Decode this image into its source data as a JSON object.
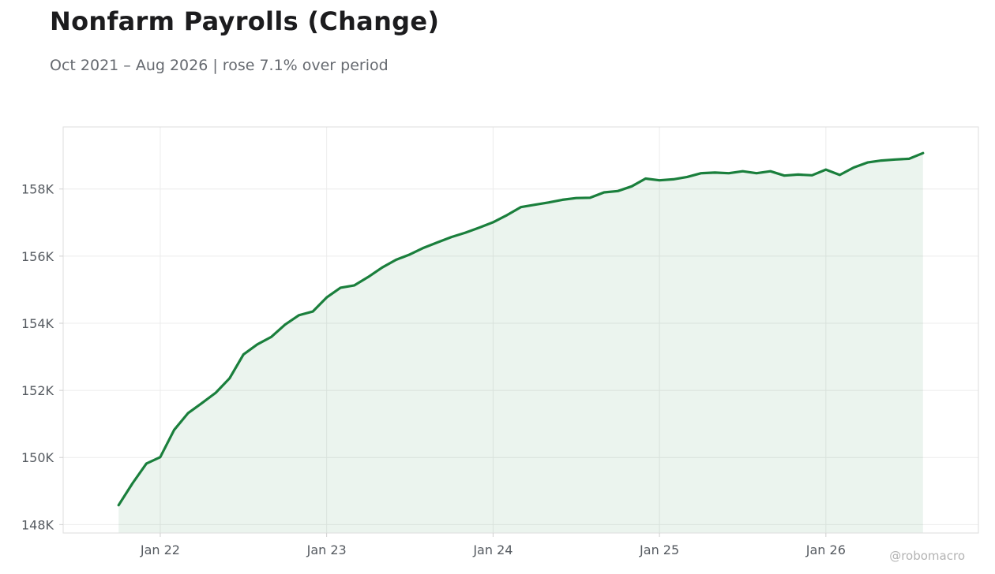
{
  "title": "Nonfarm Payrolls (Change)",
  "subtitle": "Oct 2021 – Aug 2026 | rose 7.1% over period",
  "watermark": "@robomacro",
  "colors": {
    "line": "#1a7f3c",
    "fill": "#1a7f3c",
    "grid": "#ececec",
    "frame": "#dddddd"
  },
  "chart_data": {
    "type": "area",
    "title": "Nonfarm Payrolls (Change)",
    "xlabel": "",
    "ylabel": "",
    "grid": true,
    "ylim": [
      147750,
      159850
    ],
    "x_range": [
      "2021-06",
      "2026-12"
    ],
    "x_ticks": [
      {
        "date": "2022-01",
        "label": "Jan 22"
      },
      {
        "date": "2023-01",
        "label": "Jan 23"
      },
      {
        "date": "2024-01",
        "label": "Jan 24"
      },
      {
        "date": "2025-01",
        "label": "Jan 25"
      },
      {
        "date": "2026-01",
        "label": "Jan 26"
      }
    ],
    "y_ticks": [
      {
        "value": 148000,
        "label": "148K"
      },
      {
        "value": 150000,
        "label": "150K"
      },
      {
        "value": 152000,
        "label": "152K"
      },
      {
        "value": 154000,
        "label": "154K"
      },
      {
        "value": 156000,
        "label": "156K"
      },
      {
        "value": 158000,
        "label": "158K"
      }
    ],
    "series": [
      {
        "x": [
          "2021-10",
          "2021-11",
          "2021-12",
          "2022-01",
          "2022-02",
          "2022-03",
          "2022-04",
          "2022-05",
          "2022-06",
          "2022-07",
          "2022-08",
          "2022-09",
          "2022-10",
          "2022-11",
          "2022-12",
          "2023-01",
          "2023-02",
          "2023-03",
          "2023-04",
          "2023-05",
          "2023-06",
          "2023-07",
          "2023-08",
          "2023-09",
          "2023-10",
          "2023-11",
          "2023-12",
          "2024-01",
          "2024-02",
          "2024-03",
          "2024-04",
          "2024-05",
          "2024-06",
          "2024-07",
          "2024-08",
          "2024-09",
          "2024-10",
          "2024-11",
          "2024-12",
          "2025-01",
          "2025-02",
          "2025-03",
          "2025-04",
          "2025-05",
          "2025-06",
          "2025-07",
          "2025-08",
          "2025-09",
          "2025-10",
          "2025-11",
          "2025-12",
          "2026-01",
          "2026-02",
          "2026-03",
          "2026-04",
          "2026-05",
          "2026-06",
          "2026-07",
          "2026-08"
        ],
        "values": [
          148580,
          149230,
          149820,
          150010,
          150820,
          151320,
          151620,
          151930,
          152360,
          153070,
          153370,
          153590,
          153960,
          154240,
          154350,
          154770,
          155060,
          155130,
          155380,
          155660,
          155890,
          156050,
          156250,
          156410,
          156570,
          156700,
          156850,
          157010,
          157220,
          157460,
          157530,
          157600,
          157680,
          157730,
          157740,
          157900,
          157940,
          158080,
          158310,
          158260,
          158290,
          158360,
          158470,
          158490,
          158470,
          158530,
          158470,
          158530,
          158400,
          158430,
          158410,
          158580,
          158420,
          158640,
          158790,
          158850,
          158880,
          158900,
          159070
        ]
      }
    ]
  }
}
